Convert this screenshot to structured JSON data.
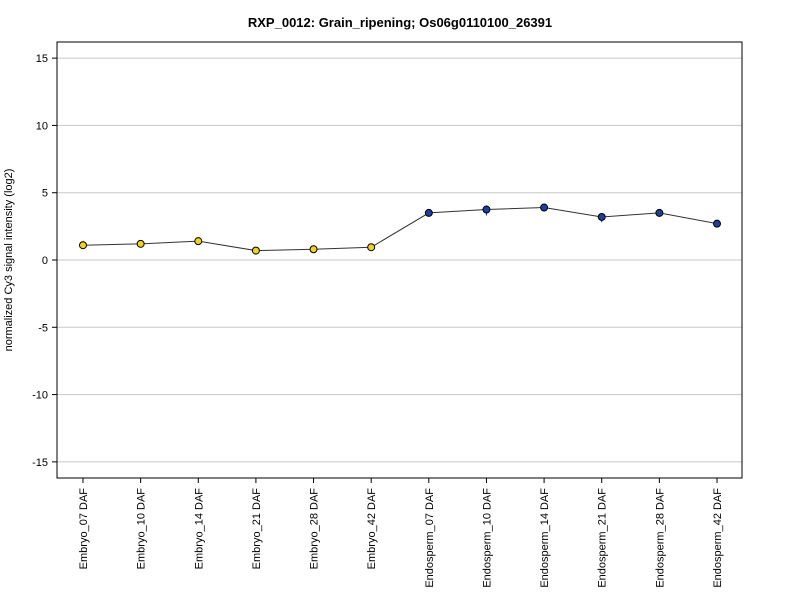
{
  "chart_data": {
    "type": "line",
    "title": "RXP_0012: Grain_ripening; Os06g0110100_26391",
    "xlabel": "",
    "ylabel": "normalized Cy3 signal intensity (log2)",
    "ylim": [
      -16.2,
      16.2
    ],
    "yticks": [
      -15,
      -10,
      -5,
      0,
      5,
      10,
      15
    ],
    "grid": "horizontal",
    "categories": [
      "Embryo_07 DAF",
      "Embryo_10 DAF",
      "Embryo_14 DAF",
      "Embryo_21 DAF",
      "Embryo_28 DAF",
      "Embryo_42 DAF",
      "Endosperm_07 DAF",
      "Endosperm_10 DAF",
      "Endosperm_14 DAF",
      "Endosperm_21 DAF",
      "Endosperm_28 DAF",
      "Endosperm_42 DAF"
    ],
    "values": [
      1.1,
      1.2,
      1.4,
      0.7,
      0.8,
      0.95,
      3.5,
      3.75,
      3.9,
      3.2,
      3.5,
      2.7
    ],
    "error_low": [
      0.8,
      1.1,
      1.3,
      0.6,
      0.7,
      0.85,
      3.4,
      3.3,
      3.6,
      2.8,
      3.4,
      2.5
    ],
    "error_high": [
      1.5,
      1.35,
      1.55,
      0.8,
      0.9,
      1.1,
      3.65,
      3.95,
      4.05,
      3.35,
      3.65,
      2.85
    ],
    "point_colors": [
      "#f2d21b",
      "#f2d21b",
      "#f2d21b",
      "#f2d21b",
      "#f2d21b",
      "#f2d21b",
      "#1f3f9f",
      "#1f3f9f",
      "#1f3f9f",
      "#1f3f9f",
      "#1f3f9f",
      "#1f3f9f"
    ],
    "line_color": "#333333",
    "grid_color": "#c8c8c8"
  }
}
